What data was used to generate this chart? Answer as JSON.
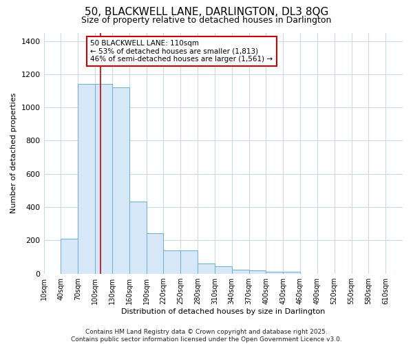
{
  "title_line1": "50, BLACKWELL LANE, DARLINGTON, DL3 8QG",
  "title_line2": "Size of property relative to detached houses in Darlington",
  "xlabel": "Distribution of detached houses by size in Darlington",
  "ylabel": "Number of detached properties",
  "bar_values": [
    0,
    210,
    1140,
    1140,
    1120,
    435,
    245,
    140,
    140,
    60,
    45,
    25,
    20,
    10,
    10,
    0,
    0,
    0,
    0,
    0,
    0
  ],
  "bar_edges": [
    10,
    40,
    70,
    100,
    130,
    160,
    190,
    220,
    250,
    280,
    310,
    340,
    370,
    400,
    430,
    460,
    490,
    520,
    550,
    580,
    610
  ],
  "bar_color": "#d6e8f7",
  "bar_edgecolor": "#6aaed6",
  "grid_color": "#c9d9ea",
  "bg_color": "#ffffff",
  "fig_bg_color": "#ffffff",
  "vline_x": 110,
  "vline_color": "#cc0000",
  "ylim": [
    0,
    1450
  ],
  "xlim_left": 10,
  "xlim_right": 640,
  "annotation_text": "50 BLACKWELL LANE: 110sqm\n← 53% of detached houses are smaller (1,813)\n46% of semi-detached houses are larger (1,561) →",
  "annotation_box_facecolor": "#ffffff",
  "annotation_box_edgecolor": "#cc0000",
  "tick_labels": [
    "10sqm",
    "40sqm",
    "70sqm",
    "100sqm",
    "130sqm",
    "160sqm",
    "190sqm",
    "220sqm",
    "250sqm",
    "280sqm",
    "310sqm",
    "340sqm",
    "370sqm",
    "400sqm",
    "430sqm",
    "460sqm",
    "490sqm",
    "520sqm",
    "550sqm",
    "580sqm",
    "610sqm"
  ],
  "copyright_text": "Contains HM Land Registry data © Crown copyright and database right 2025.\nContains public sector information licensed under the Open Government Licence v3.0.",
  "yticks": [
    0,
    200,
    400,
    600,
    800,
    1000,
    1200,
    1400
  ],
  "title1_fontsize": 11,
  "title2_fontsize": 9,
  "ylabel_fontsize": 8,
  "xlabel_fontsize": 8,
  "tick_fontsize": 7,
  "ytick_fontsize": 8,
  "annot_fontsize": 7.5,
  "copyright_fontsize": 6.5
}
